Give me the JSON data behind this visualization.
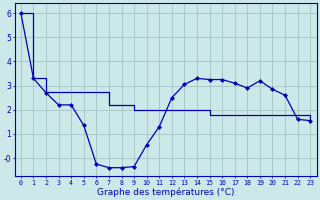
{
  "title": "Graphe des températures (°C)",
  "bg_color": "#cce8e8",
  "grid_color": "#a0c4c4",
  "line_color": "#0000bb",
  "xlim": [
    -0.5,
    23.5
  ],
  "ylim": [
    -0.75,
    6.4
  ],
  "yticks": [
    0,
    1,
    2,
    3,
    4,
    5,
    6
  ],
  "ytick_labels": [
    "-0",
    "1",
    "2",
    "3",
    "4",
    "5",
    "6"
  ],
  "xticks": [
    0,
    1,
    2,
    3,
    4,
    5,
    6,
    7,
    8,
    9,
    10,
    11,
    12,
    13,
    14,
    15,
    16,
    17,
    18,
    19,
    20,
    21,
    22,
    23
  ],
  "series1_x": [
    0,
    1,
    2,
    3,
    4,
    5,
    6,
    7,
    8,
    9,
    10,
    11,
    12,
    13,
    14,
    15,
    16,
    17,
    18,
    19,
    20,
    21,
    22,
    23
  ],
  "series1_y": [
    6.0,
    3.3,
    2.7,
    2.2,
    2.2,
    1.35,
    -0.25,
    -0.4,
    -0.4,
    -0.35,
    0.55,
    1.3,
    2.5,
    3.05,
    3.3,
    3.25,
    3.25,
    3.1,
    2.9,
    3.2,
    2.85,
    2.6,
    1.6,
    1.55
  ],
  "series2_x": [
    0,
    1,
    2,
    3,
    4,
    5,
    6,
    7,
    8,
    9,
    10,
    11,
    12,
    13,
    14,
    15,
    16,
    17,
    18,
    19,
    20,
    21,
    22,
    23
  ],
  "series2_y": [
    6.0,
    3.3,
    2.75,
    2.75,
    2.75,
    2.75,
    2.75,
    2.2,
    2.2,
    2.0,
    2.0,
    2.0,
    2.0,
    2.0,
    2.0,
    1.8,
    1.8,
    1.8,
    1.8,
    1.8,
    1.8,
    1.8,
    1.8,
    1.55
  ]
}
